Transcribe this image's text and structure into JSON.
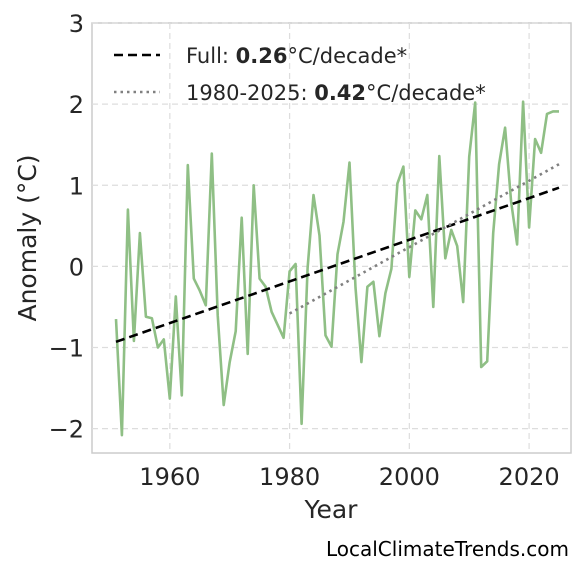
{
  "chart_data": {
    "type": "line",
    "xlabel": "Year",
    "ylabel": "Anomaly (°C)",
    "xlim": [
      1947,
      2027
    ],
    "ylim": [
      -2.3,
      3.0
    ],
    "xticks": [
      1960,
      1980,
      2000,
      2020
    ],
    "yticks": [
      -2,
      -1,
      0,
      1,
      2,
      3
    ],
    "xtick_labels": [
      "1960",
      "1980",
      "2000",
      "2020"
    ],
    "ytick_labels": [
      "−2",
      "−1",
      "0",
      "1",
      "2",
      "3"
    ],
    "grid": true,
    "legend_position": "top-left",
    "series": [
      {
        "style": "solid",
        "color": "#8fbf85",
        "x": [
          1951,
          1952,
          1953,
          1954,
          1955,
          1956,
          1957,
          1958,
          1959,
          1960,
          1961,
          1962,
          1963,
          1964,
          1965,
          1966,
          1967,
          1968,
          1969,
          1970,
          1971,
          1972,
          1973,
          1974,
          1975,
          1976,
          1977,
          1978,
          1979,
          1980,
          1981,
          1982,
          1983,
          1984,
          1985,
          1986,
          1987,
          1988,
          1989,
          1990,
          1991,
          1992,
          1993,
          1994,
          1995,
          1996,
          1997,
          1998,
          1999,
          2000,
          2001,
          2002,
          2003,
          2004,
          2005,
          2006,
          2007,
          2008,
          2009,
          2010,
          2011,
          2012,
          2013,
          2014,
          2015,
          2016,
          2017,
          2018,
          2019,
          2020,
          2021,
          2022,
          2023,
          2024,
          2025
        ],
        "y": [
          -0.65,
          -2.08,
          0.7,
          -0.92,
          0.41,
          -0.62,
          -0.64,
          -1.0,
          -0.9,
          -1.63,
          -0.37,
          -1.59,
          1.25,
          -0.15,
          -0.3,
          -0.48,
          1.39,
          -0.6,
          -1.71,
          -1.18,
          -0.8,
          0.6,
          -1.08,
          1.0,
          -0.15,
          -0.25,
          -0.56,
          -0.72,
          -0.88,
          -0.06,
          0.03,
          -1.94,
          -0.02,
          0.88,
          0.38,
          -0.85,
          -0.99,
          0.15,
          0.55,
          1.28,
          -0.26,
          -1.18,
          -0.25,
          -0.19,
          -0.86,
          -0.33,
          -0.03,
          1.02,
          1.23,
          -0.13,
          0.69,
          0.58,
          0.88,
          -0.5,
          1.36,
          0.1,
          0.45,
          0.25,
          -0.44,
          1.35,
          2.02,
          -1.24,
          -1.17,
          0.41,
          1.26,
          1.71,
          0.8,
          0.27,
          2.03,
          0.48,
          1.57,
          1.4,
          1.88,
          1.91,
          1.91
        ]
      },
      {
        "style": "dashed",
        "color": "#000000",
        "label_prefix": "Full: ",
        "label_value": "0.26",
        "label_unit": "°C/decade*",
        "x": [
          1951,
          2025
        ],
        "y": [
          -0.93,
          0.97
        ]
      },
      {
        "style": "dotted",
        "color": "#808080",
        "label_prefix": "1980-2025: ",
        "label_value": "0.42",
        "label_unit": "°C/decade*",
        "x": [
          1980,
          2025
        ],
        "y": [
          -0.58,
          1.26
        ]
      }
    ]
  },
  "credit": "LocalClimateTrends.com"
}
